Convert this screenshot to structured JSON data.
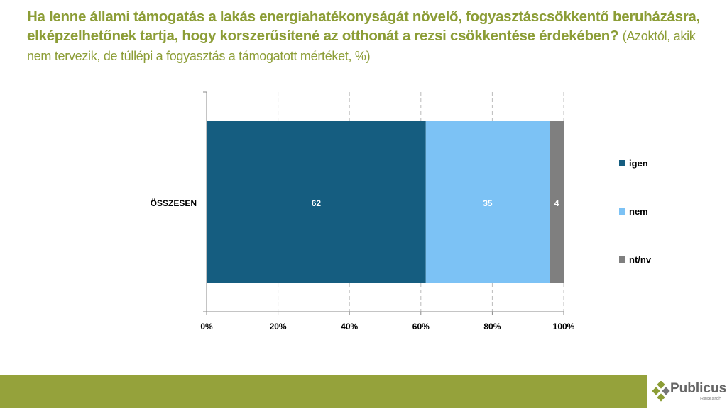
{
  "title": {
    "main": "Ha lenne állami támogatás a lakás energiahatékonyságát növelő, fogyasztáscsökkentő beruházásra, elképzelhetőnek tartja, hogy korszerűsítené az otthonát a rezsi csökkentése érdekében?",
    "sub": "(Azoktól, akik nem tervezik, de túllépi a fogyasztás a támogatott mértéket, %)"
  },
  "chart_data": {
    "type": "bar",
    "orientation": "horizontal",
    "stacked": true,
    "categories": [
      "ÖSSZESEN"
    ],
    "series": [
      {
        "name": "igen",
        "values": [
          62
        ],
        "color": "#155d80"
      },
      {
        "name": "nem",
        "values": [
          35
        ],
        "color": "#7cc2f5"
      },
      {
        "name": "nt/nv",
        "values": [
          4
        ],
        "color": "#7f7f7f"
      }
    ],
    "xticks": [
      "0%",
      "20%",
      "40%",
      "60%",
      "80%",
      "100%"
    ],
    "xlim": [
      0,
      100
    ],
    "grid": "vertical dashed",
    "legend": "right"
  },
  "logo": {
    "name": "Publicus",
    "tag": "Research"
  }
}
